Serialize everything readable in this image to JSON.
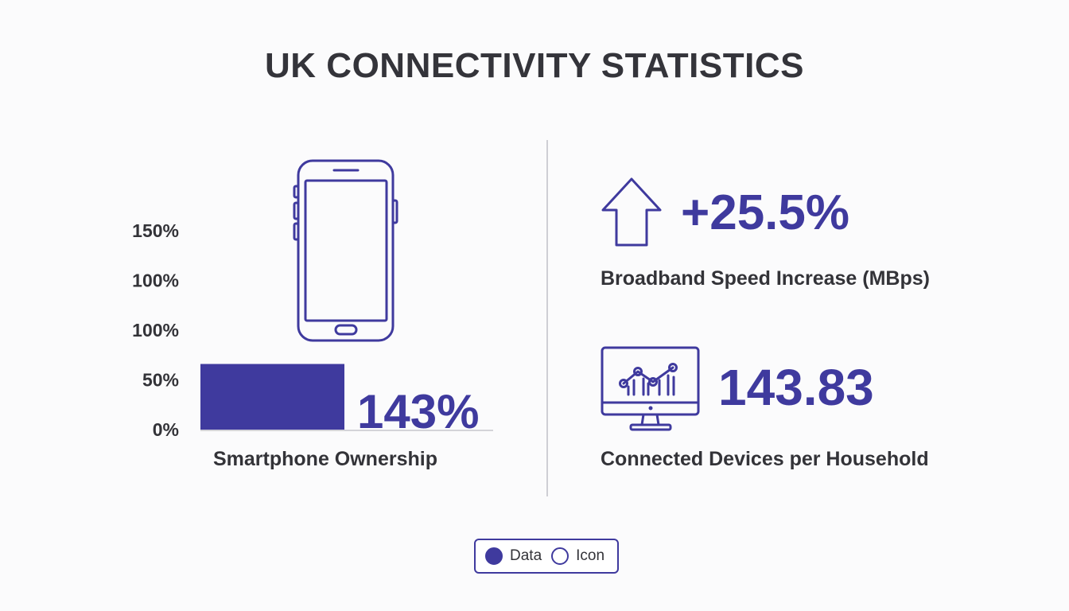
{
  "title": "UK CONNECTIVITY STATISTICS",
  "colors": {
    "accent": "#3f3a9e",
    "text": "#333338",
    "axis": "#c8c8cc",
    "divider": "#cfcfd4"
  },
  "chart_data": [
    {
      "type": "bar",
      "categories": [
        "Smartphone Ownership"
      ],
      "values": [
        143
      ],
      "data_label": "143%",
      "xlabel": "Smartphone Ownership",
      "ylabel": "",
      "ytick_labels": [
        "0%",
        "50%",
        "100%",
        "100%",
        "150%"
      ],
      "ylim": [
        0,
        150
      ],
      "bar_fill_fraction": 0.66,
      "grid": false,
      "icon": "smartphone-icon"
    }
  ],
  "stats": [
    {
      "value": "+25.5%",
      "label": "Broadband Speed Increase (MBps)",
      "icon": "arrow-up-icon"
    },
    {
      "value": "143.83",
      "label": "Connected Devices per Household",
      "icon": "monitor-chart-icon"
    }
  ],
  "legend": {
    "items": [
      {
        "label": "Data",
        "style": "filled"
      },
      {
        "label": "Icon",
        "style": "outline"
      }
    ]
  }
}
